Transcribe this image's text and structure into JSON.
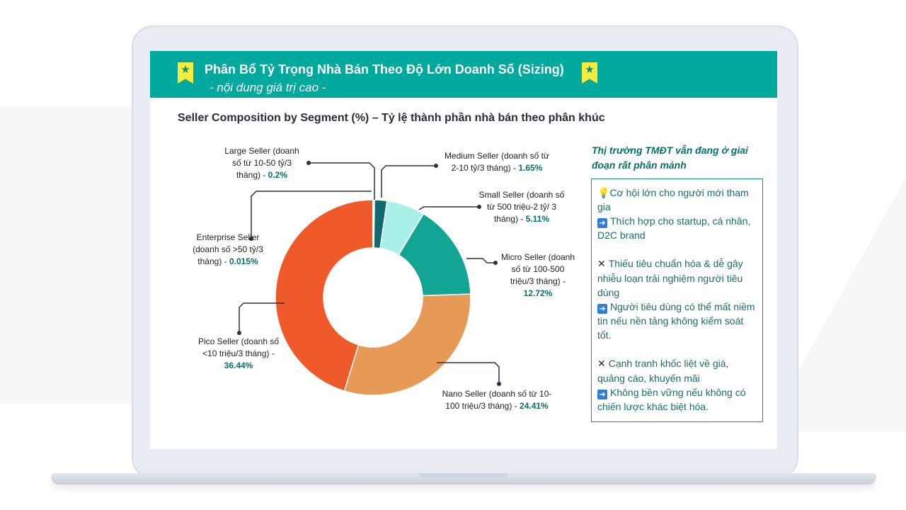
{
  "banner": {
    "title": "Phân Bổ Tỷ Trọng Nhà Bán Theo Độ Lớn Doanh Số (Sizing)",
    "subtitle": "- nội dung giá trị cao -",
    "star_icon": "star-icon",
    "accent_color": "#00a99d",
    "bookmark_color": "#f6ec3b"
  },
  "chart_data": {
    "type": "pie",
    "style": "donut",
    "title": "Seller Composition by Segment (%) – Tỷ lệ thành phần nhà bán theo phân khúc",
    "unit": "%",
    "slices": [
      {
        "name": "Large Seller",
        "value": 0.2,
        "color": "#1f3a4a",
        "label_lines": [
          "Large Seller (doanh",
          "số từ 10-50 tỷ/3"
        ],
        "label_last": "tháng) - ",
        "label_pct": "0.2%"
      },
      {
        "name": "Medium Seller",
        "value": 1.65,
        "color": "#0f6b70",
        "label_lines": [
          "Medium Seller (doanh số từ"
        ],
        "label_last": "2-10 tỷ/3 tháng) - ",
        "label_pct": "1.65%"
      },
      {
        "name": "Small Seller",
        "value": 5.11,
        "color": "#a8f0e8",
        "label_lines": [
          "Small Seller (doanh số",
          "từ 500 triệu-2 tỷ/ 3"
        ],
        "label_last": "tháng) - ",
        "label_pct": "5.11%"
      },
      {
        "name": "Micro Seller",
        "value": 12.72,
        "color": "#12a596",
        "label_lines": [
          "Micro Seller (doanh",
          "số từ 100-500",
          "triệu/3 tháng) -"
        ],
        "label_last": "",
        "label_pct": "12.72%"
      },
      {
        "name": "Nano Seller",
        "value": 24.41,
        "color": "#e69a55",
        "label_lines": [
          "Nano Seller (doanh số từ 10-"
        ],
        "label_last": "100 triệu/3 tháng) - ",
        "label_pct": "24.41%"
      },
      {
        "name": "Pico Seller",
        "value": 36.44,
        "color": "#f05a2a",
        "label_lines": [
          "Pico Seller (doanh số",
          "<10 triệu/3 tháng) -"
        ],
        "label_last": "",
        "label_pct": "36.44%"
      },
      {
        "name": "Enterprise Seller",
        "value": 0.015,
        "color": "#1a1a2a",
        "label_lines": [
          "Enterprise Seller",
          "(doanh số >50 tỷ/3"
        ],
        "label_last": "tháng) - ",
        "label_pct": "0.015%"
      }
    ]
  },
  "side": {
    "heading": "Thị trường TMĐT vẫn đang ở giai đoạn rất phân mảnh",
    "bulb_icon": "lightbulb-icon",
    "arrow_icon": "right-arrow-icon",
    "cross_icon": "cross-mark-icon",
    "items": [
      {
        "icon": "bulb",
        "text": "Cơ hội lớn cho người mới tham gia"
      },
      {
        "icon": "arrow",
        "text": "Thích hợp cho startup, cá nhân, D2C brand"
      },
      {
        "icon": "gap"
      },
      {
        "icon": "cross",
        "text": "Thiếu tiêu chuẩn hóa & dễ gây nhiễu loạn trải nghiệm người tiêu dùng"
      },
      {
        "icon": "arrow",
        "text": "Người tiêu dùng có thể mất niềm tin nếu nền tảng không kiểm soát tốt."
      },
      {
        "icon": "gap"
      },
      {
        "icon": "cross",
        "text": "Cạnh tranh khốc liệt về giá, quảng cáo, khuyến mãi"
      },
      {
        "icon": "arrow",
        "text": "Không bền vững nếu không có chiến lược khác biệt hóa."
      }
    ]
  }
}
